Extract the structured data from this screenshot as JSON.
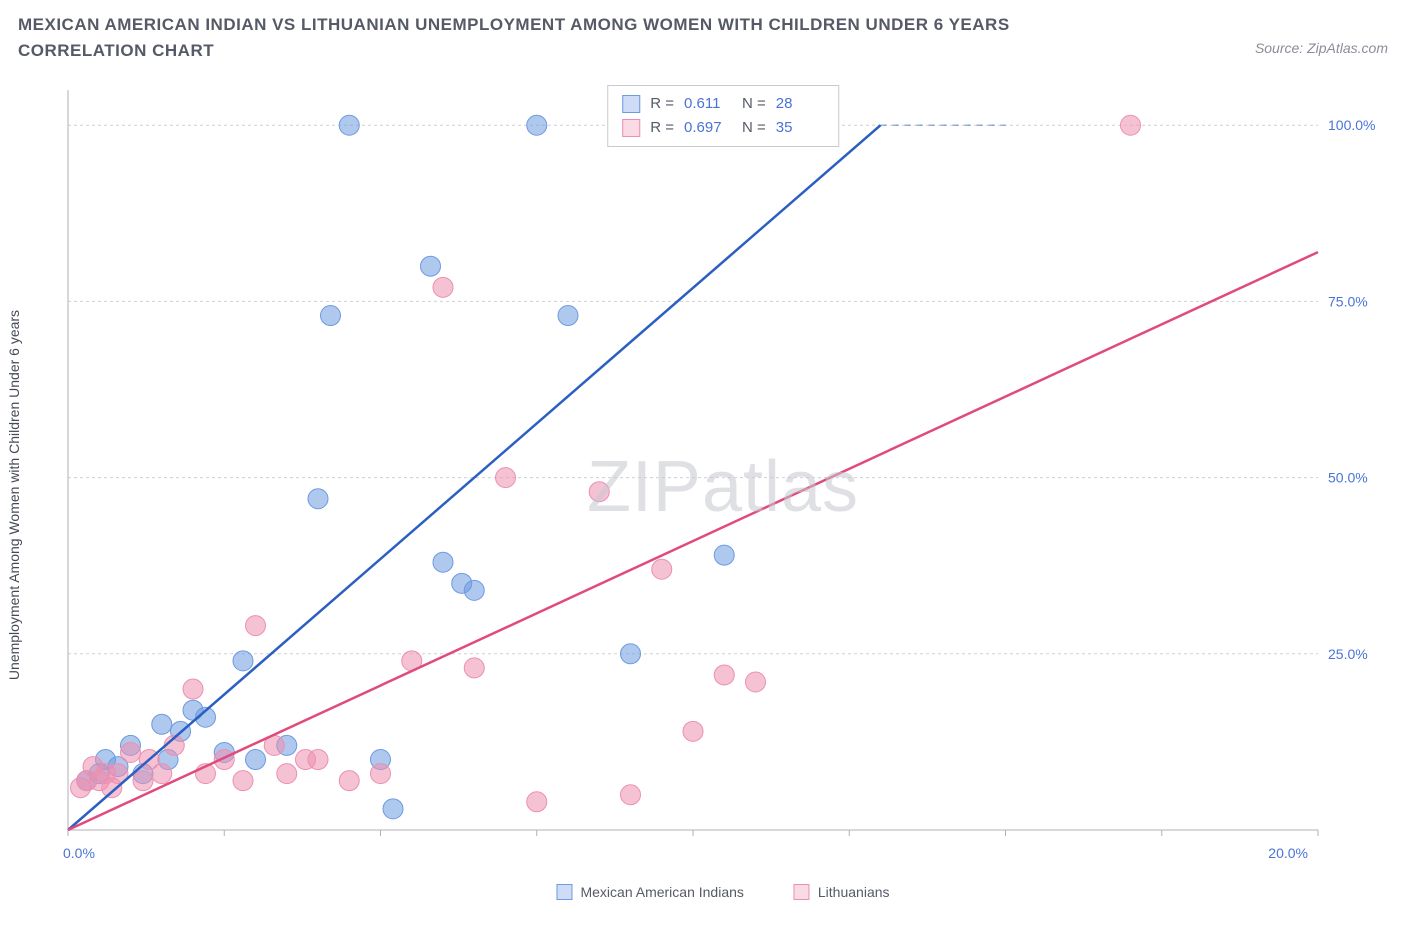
{
  "title": "MEXICAN AMERICAN INDIAN VS LITHUANIAN UNEMPLOYMENT AMONG WOMEN WITH CHILDREN UNDER 6 YEARS CORRELATION CHART",
  "source": "Source: ZipAtlas.com",
  "ylabel": "Unemployment Among Women with Children Under 6 years",
  "watermark_a": "ZIP",
  "watermark_b": "atlas",
  "chart": {
    "type": "scatter",
    "xlim": [
      0,
      20
    ],
    "ylim": [
      0,
      105
    ],
    "x_ticks": [
      0,
      2.5,
      5,
      7.5,
      10,
      12.5,
      15,
      17.5,
      20
    ],
    "x_tick_labels": {
      "0": "0.0%",
      "20": "20.0%"
    },
    "y_ticks": [
      25,
      50,
      75,
      100
    ],
    "y_tick_labels": {
      "25": "25.0%",
      "50": "50.0%",
      "75": "75.0%",
      "100": "100.0%"
    },
    "grid_color": "#d0d0d5",
    "background_color": "#ffffff",
    "axis_color": "#b0b0b8",
    "marker_radius": 10,
    "marker_opacity": 0.55,
    "line_width": 2.5,
    "series": [
      {
        "name": "Mexican American Indians",
        "color": "#6d9ae0",
        "line_color": "#2b5fc2",
        "r": "0.611",
        "n": "28",
        "trend": {
          "x1": 0,
          "y1": 0,
          "x2": 13,
          "y2": 100,
          "slope": 7.69
        },
        "points": [
          [
            0.3,
            7
          ],
          [
            0.5,
            8
          ],
          [
            0.6,
            10
          ],
          [
            0.8,
            9
          ],
          [
            1.0,
            12
          ],
          [
            1.2,
            8
          ],
          [
            1.5,
            15
          ],
          [
            1.6,
            10
          ],
          [
            1.8,
            14
          ],
          [
            2.0,
            17
          ],
          [
            2.2,
            16
          ],
          [
            2.5,
            11
          ],
          [
            2.8,
            24
          ],
          [
            3.0,
            10
          ],
          [
            3.5,
            12
          ],
          [
            4.0,
            47
          ],
          [
            4.2,
            73
          ],
          [
            4.5,
            100
          ],
          [
            5.0,
            10
          ],
          [
            5.2,
            3
          ],
          [
            5.8,
            80
          ],
          [
            6.0,
            38
          ],
          [
            6.3,
            35
          ],
          [
            6.5,
            34
          ],
          [
            7.5,
            100
          ],
          [
            8.0,
            73
          ],
          [
            9.0,
            25
          ],
          [
            10.5,
            39
          ]
        ]
      },
      {
        "name": "Lithuanians",
        "color": "#ec8fb0",
        "line_color": "#e04a7d",
        "r": "0.697",
        "n": "35",
        "trend": {
          "x1": 0,
          "y1": 0,
          "x2": 20,
          "y2": 82,
          "slope": 4.1
        },
        "points": [
          [
            0.2,
            6
          ],
          [
            0.3,
            7
          ],
          [
            0.4,
            9
          ],
          [
            0.5,
            7
          ],
          [
            0.6,
            8
          ],
          [
            0.7,
            6
          ],
          [
            0.8,
            8
          ],
          [
            1.0,
            11
          ],
          [
            1.2,
            7
          ],
          [
            1.3,
            10
          ],
          [
            1.5,
            8
          ],
          [
            1.7,
            12
          ],
          [
            2.0,
            20
          ],
          [
            2.2,
            8
          ],
          [
            2.5,
            10
          ],
          [
            2.8,
            7
          ],
          [
            3.0,
            29
          ],
          [
            3.3,
            12
          ],
          [
            3.5,
            8
          ],
          [
            3.8,
            10
          ],
          [
            4.0,
            10
          ],
          [
            4.5,
            7
          ],
          [
            5.0,
            8
          ],
          [
            5.5,
            24
          ],
          [
            6.0,
            77
          ],
          [
            6.5,
            23
          ],
          [
            7.0,
            50
          ],
          [
            7.5,
            4
          ],
          [
            8.5,
            48
          ],
          [
            9.0,
            5
          ],
          [
            9.5,
            37
          ],
          [
            10.0,
            14
          ],
          [
            10.5,
            22
          ],
          [
            11.0,
            21
          ],
          [
            17.0,
            100
          ]
        ]
      }
    ],
    "r_legend_labels": {
      "r": "R =",
      "n": "N ="
    }
  }
}
